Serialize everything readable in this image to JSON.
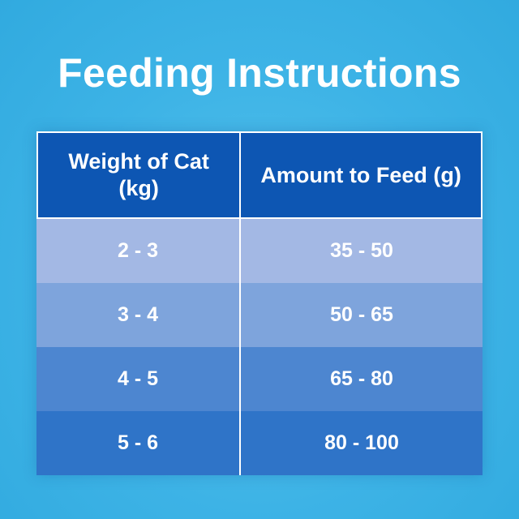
{
  "title": "Feeding Instructions",
  "table": {
    "headers": [
      "Weight of Cat (kg)",
      "Amount to Feed (g)"
    ],
    "rows": [
      [
        "2 - 3",
        "35 - 50"
      ],
      [
        "3 - 4",
        "50 - 65"
      ],
      [
        "4 - 5",
        "65 - 80"
      ],
      [
        "5 - 6",
        "80 - 100"
      ]
    ]
  },
  "colors": {
    "background": "#3db3e6",
    "header": "#0d56b3",
    "row_1": "#a3b8e4",
    "row_2": "#7ea4dc",
    "row_3": "#4d86d0",
    "row_4": "#2f74c8",
    "text": "#ffffff"
  }
}
